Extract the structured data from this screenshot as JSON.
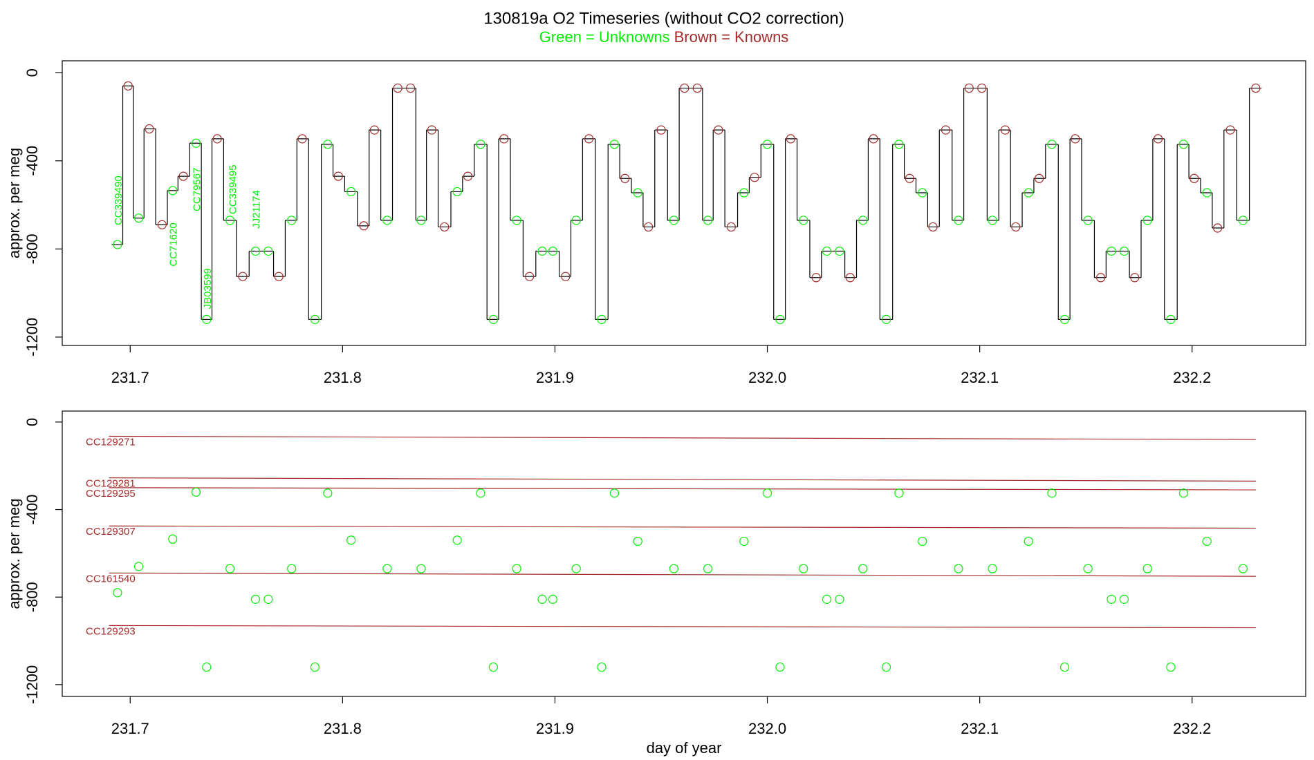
{
  "chart_data": [
    {
      "type": "step-scatter",
      "title": "130819a   O2 Timeseries (without CO2 correction)",
      "markers": [
        {
          "label": "Green = Unknowns",
          "color": "#00ee00"
        },
        {
          "label": "Brown = Knowns",
          "color": "#a52a2a"
        }
      ],
      "line_color": "#000000",
      "ylabel": "approx. per meg",
      "xlim": [
        231.668,
        232.2535
      ],
      "xticks": [
        231.7,
        231.8,
        231.9,
        {
          "value": 232,
          "label": "232.0"
        },
        232.1,
        232.2
      ],
      "ylim": [
        -1238,
        54
      ],
      "yticks": [
        0,
        -400,
        -800,
        -1200
      ],
      "annotations": [
        "CC339490",
        "CC71620",
        "CC79567",
        "JB03599",
        "CC339495",
        "JJ21174"
      ],
      "x": [
        231.694,
        231.699,
        231.704,
        231.709,
        231.715,
        231.72,
        231.725,
        231.731,
        231.736,
        231.741,
        231.747,
        231.753,
        231.759,
        231.765,
        231.77,
        231.776,
        231.781,
        231.787,
        231.793,
        231.798,
        231.804,
        231.81,
        231.815,
        231.821,
        231.826,
        231.832,
        231.837,
        231.842,
        231.848,
        231.854,
        231.859,
        231.865,
        231.871,
        231.876,
        231.882,
        231.888,
        231.894,
        231.899,
        231.905,
        231.91,
        231.916,
        231.922,
        231.928,
        231.933,
        231.939,
        231.944,
        231.95,
        231.956,
        231.961,
        231.967,
        231.972,
        231.977,
        231.983,
        231.989,
        231.994,
        232.0,
        232.006,
        232.011,
        232.017,
        232.023,
        232.028,
        232.034,
        232.039,
        232.045,
        232.05,
        232.056,
        232.062,
        232.067,
        232.073,
        232.078,
        232.084,
        232.09,
        232.095,
        232.101,
        232.106,
        232.112,
        232.117,
        232.123,
        232.128,
        232.134,
        232.14,
        232.145,
        232.151,
        232.157,
        232.162,
        232.168,
        232.173,
        232.179,
        232.184,
        232.19,
        232.196,
        232.201,
        232.207,
        232.212,
        232.218,
        232.224,
        232.23
      ],
      "values": [
        -780,
        -60,
        -660,
        -255,
        -690,
        -535,
        -470,
        -320,
        -1120,
        -300,
        -670,
        -925,
        -810,
        -810,
        -925,
        -670,
        -300,
        -1120,
        -325,
        -470,
        -540,
        -695,
        -260,
        -670,
        -70,
        -70,
        -670,
        -260,
        -700,
        -540,
        -470,
        -325,
        -1120,
        -300,
        -670,
        -925,
        -810,
        -810,
        -925,
        -670,
        -300,
        -1120,
        -325,
        -480,
        -545,
        -700,
        -260,
        -670,
        -70,
        -70,
        -670,
        -260,
        -700,
        -545,
        -475,
        -325,
        -1120,
        -300,
        -670,
        -930,
        -810,
        -810,
        -930,
        -670,
        -300,
        -1120,
        -325,
        -480,
        -545,
        -700,
        -260,
        -670,
        -70,
        -70,
        -670,
        -260,
        -700,
        -545,
        -480,
        -325,
        -1120,
        -300,
        -670,
        -930,
        -810,
        -810,
        -930,
        -670,
        -300,
        -1120,
        -325,
        -480,
        -545,
        -705,
        -260,
        -670,
        -70
      ],
      "groups": [
        0,
        1,
        0,
        1,
        1,
        0,
        1,
        0,
        0,
        1,
        0,
        1,
        0,
        0,
        1,
        0,
        1,
        0,
        0,
        1,
        0,
        1,
        1,
        0,
        1,
        1,
        0,
        1,
        1,
        0,
        1,
        0,
        0,
        1,
        0,
        1,
        0,
        0,
        1,
        0,
        1,
        0,
        0,
        1,
        0,
        1,
        1,
        0,
        1,
        1,
        0,
        1,
        1,
        0,
        1,
        0,
        0,
        1,
        0,
        1,
        0,
        0,
        1,
        0,
        1,
        0,
        0,
        1,
        0,
        1,
        1,
        0,
        1,
        1,
        0,
        1,
        1,
        0,
        1,
        0,
        0,
        1,
        0,
        1,
        0,
        0,
        1,
        0,
        1,
        0,
        0,
        1,
        0,
        1,
        1,
        0,
        1
      ]
    },
    {
      "type": "scatter-lines",
      "color": "#00ee00",
      "line_color": "#a52a2a",
      "ylabel": "approx. per meg",
      "xlabel": "day of year",
      "xlim": [
        231.668,
        232.2535
      ],
      "xticks": [
        231.7,
        231.8,
        231.9,
        {
          "value": 232,
          "label": "232.0"
        },
        232.1,
        232.2
      ],
      "ylim": [
        -1254,
        50
      ],
      "yticks": [
        0,
        -400,
        -800,
        -1200
      ],
      "line_x": [
        231.69,
        232.23
      ],
      "lines": [
        {
          "name": "CC129271",
          "values": [
            -65,
            -80
          ]
        },
        {
          "name": "CC129281",
          "values": [
            -255,
            -270
          ]
        },
        {
          "name": "CC129295",
          "values": [
            -300,
            -310
          ]
        },
        {
          "name": "CC129307",
          "values": [
            -475,
            -485
          ]
        },
        {
          "name": "CC161540",
          "values": [
            -690,
            -705
          ]
        },
        {
          "name": "CC129293",
          "values": [
            -930,
            -940
          ]
        }
      ],
      "x": [
        231.694,
        231.704,
        231.72,
        231.731,
        231.736,
        231.747,
        231.759,
        231.765,
        231.776,
        231.787,
        231.793,
        231.804,
        231.821,
        231.837,
        231.854,
        231.865,
        231.871,
        231.882,
        231.894,
        231.899,
        231.91,
        231.922,
        231.928,
        231.939,
        231.956,
        231.972,
        231.989,
        232.0,
        232.006,
        232.017,
        232.028,
        232.034,
        232.045,
        232.056,
        232.062,
        232.073,
        232.09,
        232.106,
        232.123,
        232.134,
        232.14,
        232.151,
        232.162,
        232.168,
        232.179,
        232.19,
        232.196,
        232.207,
        232.224
      ],
      "values": [
        -780,
        -660,
        -535,
        -320,
        -1120,
        -670,
        -810,
        -810,
        -670,
        -1120,
        -325,
        -540,
        -670,
        -670,
        -540,
        -325,
        -1120,
        -670,
        -810,
        -810,
        -670,
        -1120,
        -325,
        -545,
        -670,
        -670,
        -545,
        -325,
        -1120,
        -670,
        -810,
        -810,
        -670,
        -1120,
        -325,
        -545,
        -670,
        -670,
        -545,
        -325,
        -1120,
        -670,
        -810,
        -810,
        -670,
        -1120,
        -325,
        -545,
        -670
      ]
    }
  ]
}
